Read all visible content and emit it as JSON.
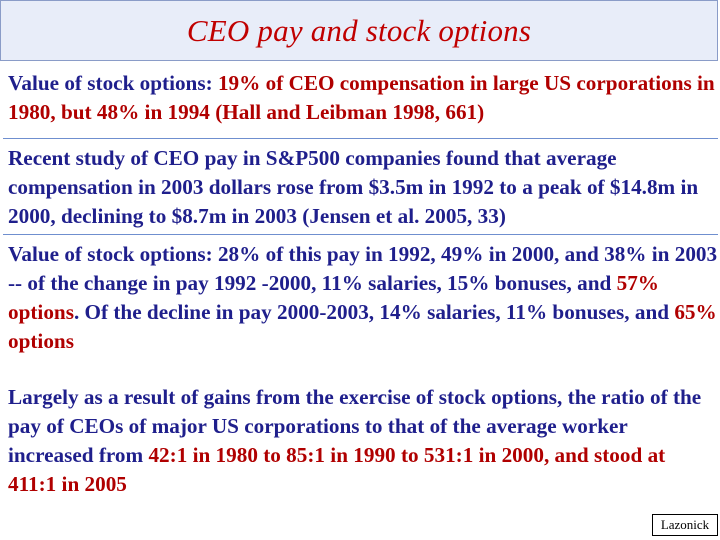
{
  "slide": {
    "title": "CEO pay and stock options"
  },
  "paragraphs": {
    "p1": {
      "s1": "Value of stock options: ",
      "s2": "19% of CEO compensation in large US corporations in 1980, but 48% in 1994 (Hall and Leibman 1998, 661)"
    },
    "p2": {
      "s1": "Recent study of CEO pay in S&P500 companies found that average compensation in 2003 dollars rose from $3.5m in 1992 to a peak of $14.8m in 2000, declining to $8.7m in 2003 (Jensen et al. 2005, 33)"
    },
    "p3": {
      "s1": "Value of stock options: 28% of this pay in 1992, 49% in 2000, and 38% in 2003 -- of the change in pay 1992 -2000, 11% salaries, 15% bonuses, and ",
      "s2": "57% options",
      "s3": ".  Of the decline in pay 2000-2003, 14% salaries, 11% bonuses, and ",
      "s4": "65% options"
    },
    "p4": {
      "s1": "Largely as a result of gains from the exercise of stock options, the ratio of the pay of CEOs of major US corporations to that of the average worker increased from ",
      "s2": "42:1 in 1980 to 85:1 in 1990 to 531:1 in 2000, and stood at 411:1 in 2005"
    }
  },
  "footer": {
    "author_label": "Lazonick"
  },
  "colors": {
    "title": "#c00000",
    "body_text": "#1f1f8c",
    "highlight": "#b00000",
    "title_background": "#e8edf9"
  }
}
